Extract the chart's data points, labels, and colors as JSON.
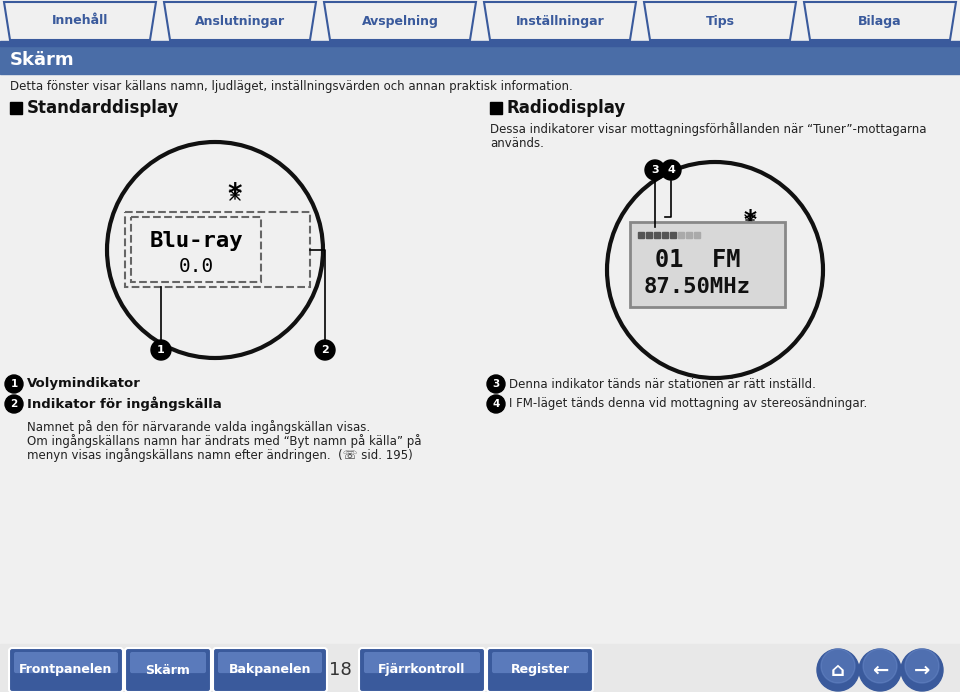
{
  "tab_labels": [
    "Innehåll",
    "Anslutningar",
    "Avspelning",
    "Inställningar",
    "Tips",
    "Bilaga"
  ],
  "header_title": "Skärm",
  "header_subtitle": "Detta fönster visar källans namn, ljudläget, inställningsvärden och annan praktisk information.",
  "section1_title": "Standarddisplay",
  "section2_title": "Radiodisplay",
  "section2_desc": "Dessa indikatorer visar mottagningsförhållanden när “Tuner”-mottagarna\nanvänds.",
  "label1_bold": "Volymindikator",
  "label2_bold": "Indikator för ingångskälla",
  "label2_line1": "Namnet på den för närvarande valda ingångskällan visas.",
  "label2_line2": "Om ingångskällans namn har ändrats med “Byt namn på källa” på",
  "label2_line3": "menyn visas ingångskällans namn efter ändringen.  (☏ sid. 195)",
  "label3_text": "Denna indikator tänds när stationen är rätt inställd.",
  "label4_text": "I FM-läget tänds denna vid mottagning av stereosändningar.",
  "bottom_buttons": [
    "Frontpanelen",
    "Skärm",
    "Bakpanelen",
    "Fjärrkontroll",
    "Register"
  ],
  "page_number": "18",
  "nav_color": "#3a5a9c",
  "header_bg": "#4a6da7",
  "bottom_btn_color": "#3a5a9c"
}
